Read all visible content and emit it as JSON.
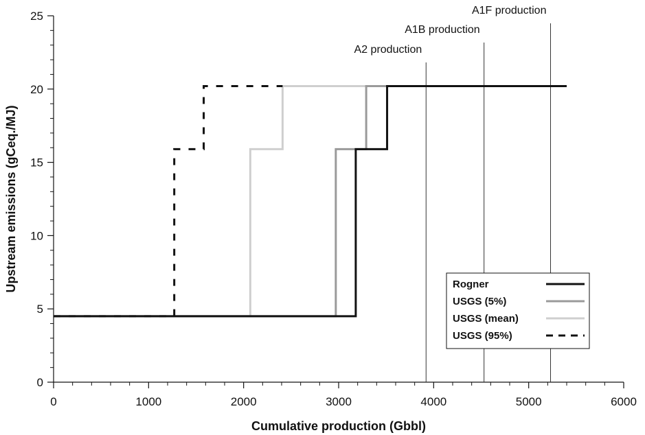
{
  "chart_data": {
    "type": "line",
    "title": "",
    "xlabel": "Cumulative production (Gbbl)",
    "ylabel": "Upstream emissions (gCeq./MJ)",
    "xlim": [
      0,
      6000
    ],
    "ylim": [
      0,
      25
    ],
    "xticks": [
      0,
      1000,
      2000,
      3000,
      4000,
      5000,
      6000
    ],
    "yticks": [
      0,
      5,
      10,
      15,
      20,
      25
    ],
    "x_minor_step": 200,
    "y_minor_step": 1,
    "grid": false,
    "series": [
      {
        "name": "Rogner",
        "color": "#111111",
        "dash": "solid",
        "step_x": [
          0,
          3180,
          3180,
          3510,
          3510,
          5400
        ],
        "step_y": [
          4.5,
          4.5,
          15.9,
          15.9,
          20.2,
          20.2
        ]
      },
      {
        "name": "USGS (5%)",
        "color": "#9a9a9a",
        "dash": "solid",
        "step_x": [
          0,
          2970,
          2970,
          3290,
          3290,
          3510
        ],
        "step_y": [
          4.5,
          4.5,
          15.9,
          15.9,
          20.2,
          20.2
        ]
      },
      {
        "name": "USGS (mean)",
        "color": "#cfcfcf",
        "dash": "solid",
        "step_x": [
          0,
          2070,
          2070,
          2410,
          2410,
          3290
        ],
        "step_y": [
          4.5,
          4.5,
          15.9,
          15.9,
          20.2,
          20.2
        ]
      },
      {
        "name": "USGS (95%)",
        "color": "#111111",
        "dash": "dashed",
        "step_x": [
          0,
          1270,
          1270,
          1580,
          1580,
          2410
        ],
        "step_y": [
          4.5,
          4.5,
          15.9,
          15.9,
          20.2,
          20.2
        ]
      }
    ],
    "reference_lines": [
      {
        "label": "A2 production",
        "x": 3920
      },
      {
        "label": "A1B production",
        "x": 4530
      },
      {
        "label": "A1F production",
        "x": 5230
      }
    ],
    "legend_placement": "bottom-right"
  }
}
